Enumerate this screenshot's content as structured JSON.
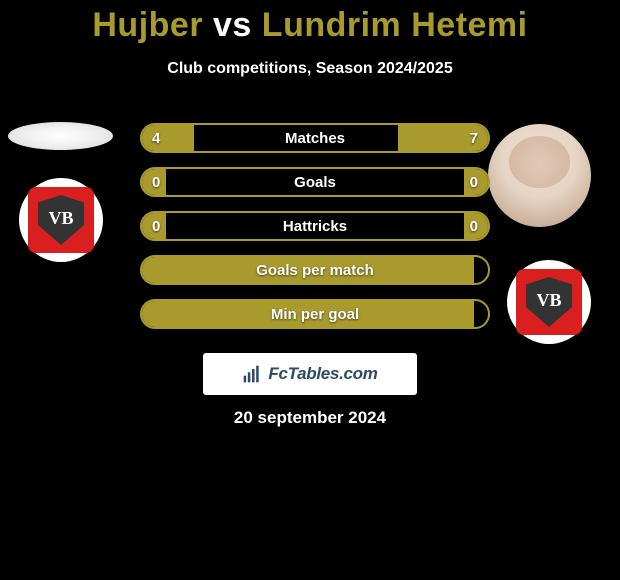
{
  "colors": {
    "accent": "#a89a2d",
    "crest_red": "#d91f1f",
    "badge_text": "#2e4a66"
  },
  "title": {
    "player1": "Hujber",
    "vs": "vs",
    "player2": "Lundrim Hetemi"
  },
  "subtitle": "Club competitions, Season 2024/2025",
  "crest_text": "VB",
  "bars": [
    {
      "label": "Matches",
      "left_val": "4",
      "right_val": "7",
      "left_pct": 15,
      "right_pct": 26
    },
    {
      "label": "Goals",
      "left_val": "0",
      "right_val": "0",
      "left_pct": 7,
      "right_pct": 7
    },
    {
      "label": "Hattricks",
      "left_val": "0",
      "right_val": "0",
      "left_pct": 7,
      "right_pct": 7
    },
    {
      "label": "Goals per match",
      "left_val": "",
      "right_val": "",
      "left_pct": 96,
      "right_pct": 0
    },
    {
      "label": "Min per goal",
      "left_val": "",
      "right_val": "",
      "left_pct": 96,
      "right_pct": 0
    }
  ],
  "badge_text": "FcTables.com",
  "date": "20 september 2024"
}
